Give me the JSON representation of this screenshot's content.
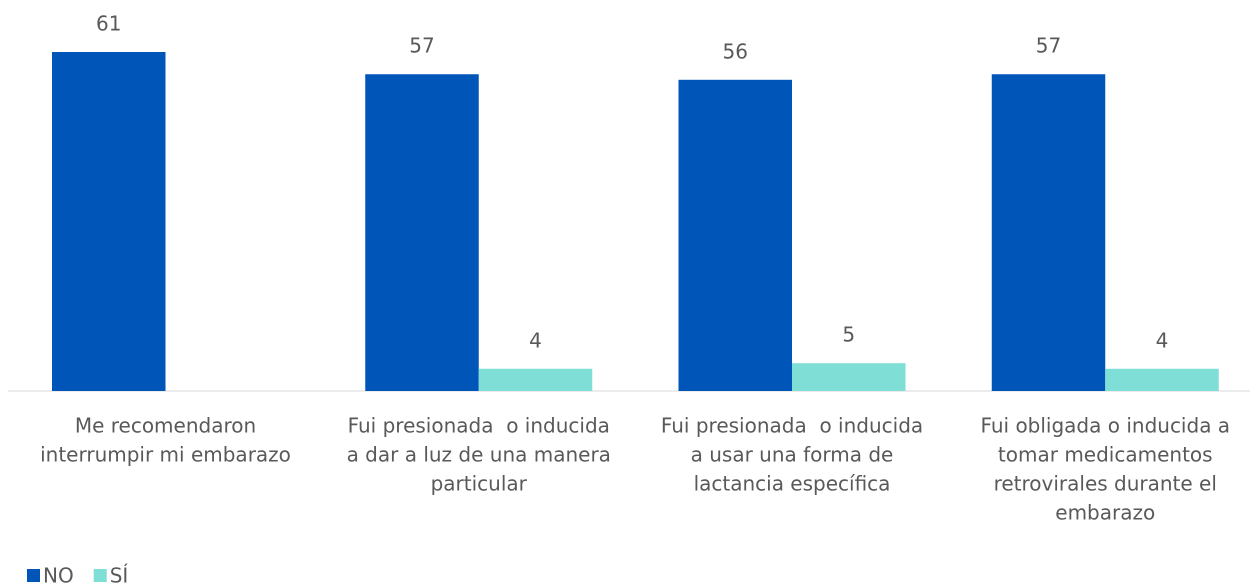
{
  "chart_data": {
    "type": "bar",
    "categories": [
      [
        "Me recomendaron",
        "interrumpir mi embarazo"
      ],
      [
        "Fui presionada  o inducida",
        "a dar a luz de una manera",
        "particular"
      ],
      [
        "Fui presionada  o inducida",
        "a usar una forma de",
        "lactancia específica"
      ],
      [
        "Fui obligada o inducida a",
        "tomar medicamentos",
        "retrovirales durante el",
        "embarazo"
      ]
    ],
    "series": [
      {
        "name": "NO",
        "color": "#0055b8",
        "values": [
          61,
          57,
          56,
          57
        ]
      },
      {
        "name": "SÍ",
        "color": "#7fded5",
        "values": [
          null,
          4,
          5,
          4
        ]
      }
    ],
    "ylim": [
      0,
      70
    ],
    "legend": "bottom-left"
  }
}
